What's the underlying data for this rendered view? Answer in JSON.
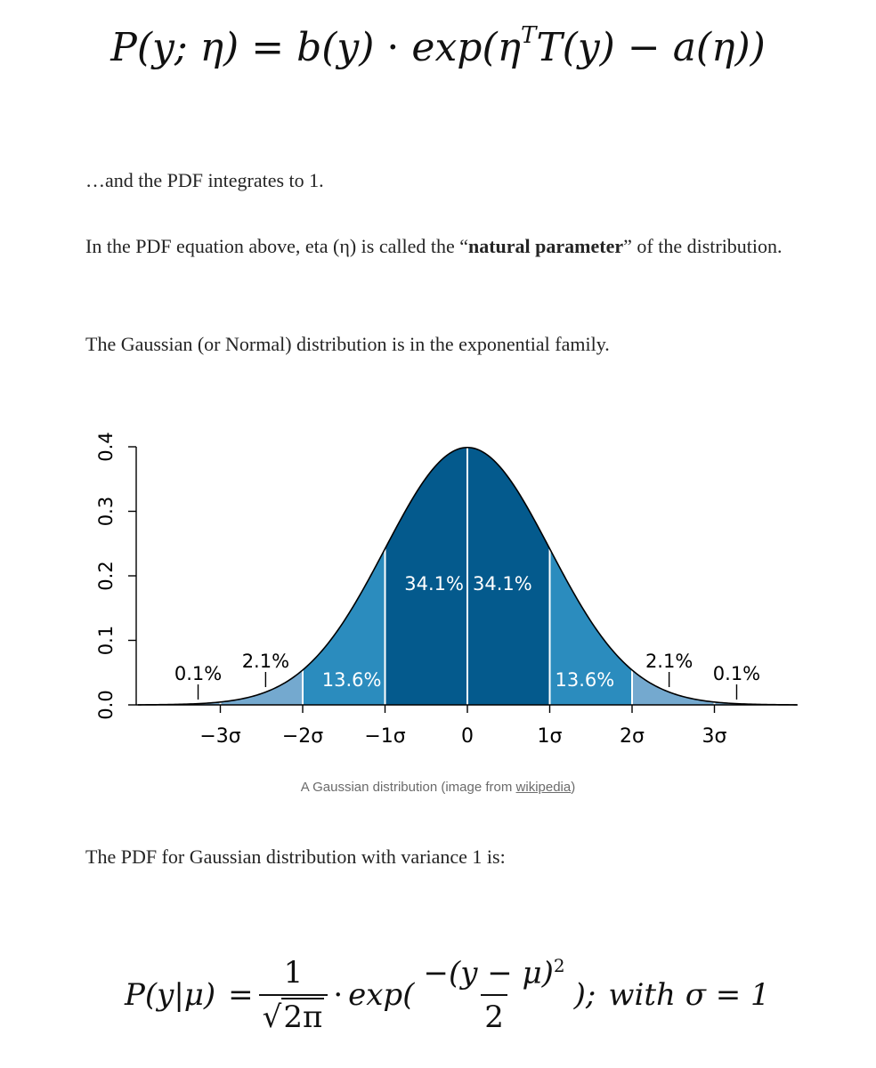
{
  "equation_top": {
    "lhs": "P(y; η)",
    "eq": "=",
    "b": "b(y)",
    "dot": "·",
    "exp_open": "exp(η",
    "sup": "T",
    "rest": "T(y) − a(η))"
  },
  "paragraphs": {
    "p1": "…and the PDF integrates to 1.",
    "p2_before": "In the PDF equation above, eta (η) is called the “",
    "p2_bold": "natural parameter",
    "p2_after": "” of the distribution.",
    "p3": "The Gaussian (or Normal) distribution is in the exponential family.",
    "p4": "The PDF for Gaussian distribution with variance 1 is:"
  },
  "caption": {
    "text": "A Gaussian distribution (image from ",
    "link": "wikipedia",
    "end": ")"
  },
  "colors": {
    "dark": "#045a8d",
    "mid": "#2b8cbe",
    "light": "#74a9cf",
    "curve": "#000000"
  },
  "chart_data": {
    "type": "area",
    "series": [
      {
        "name": "",
        "values": []
      }
    ],
    "distribution": "standard normal",
    "mean": 0,
    "sd": 1,
    "xlim": [
      -4,
      4
    ],
    "ylim": [
      0,
      0.4
    ],
    "y_ticks": [
      "0.0",
      "0.1",
      "0.2",
      "0.3",
      "0.4"
    ],
    "y_tick_values": [
      0,
      0.1,
      0.2,
      0.3,
      0.4
    ],
    "x_ticks": [
      "−3σ",
      "−2σ",
      "−1σ",
      "0",
      "1σ",
      "2σ",
      "3σ"
    ],
    "x_tick_values": [
      -3,
      -2,
      -1,
      0,
      1,
      2,
      3
    ],
    "bands": [
      {
        "from": -1,
        "to": 0,
        "label": "34.1%",
        "shade": "dark"
      },
      {
        "from": 0,
        "to": 1,
        "label": "34.1%",
        "shade": "dark"
      },
      {
        "from": -2,
        "to": -1,
        "label": "13.6%",
        "shade": "mid"
      },
      {
        "from": 1,
        "to": 2,
        "label": "13.6%",
        "shade": "mid"
      },
      {
        "from": -3,
        "to": -2,
        "label": "2.1%",
        "shade": "light"
      },
      {
        "from": 2,
        "to": 3,
        "label": "2.1%",
        "shade": "light"
      },
      {
        "from": -4,
        "to": -3,
        "label": "0.1%",
        "shade": "light"
      },
      {
        "from": 3,
        "to": 4,
        "label": "0.1%",
        "shade": "light"
      }
    ],
    "title": "",
    "xlabel": "",
    "ylabel": "",
    "grid": false
  },
  "equation_bottom": {
    "lhs": "P(y|μ)",
    "eq": "=",
    "frac1_num": "1",
    "sqrt_sign": "√",
    "frac1_den": "2π",
    "dot": "·",
    "exp_open": "exp(",
    "frac2_num": "−(y − μ)",
    "frac2_sup": "2",
    "frac2_den": "2",
    "close": ");",
    "with": "with σ = 1"
  }
}
